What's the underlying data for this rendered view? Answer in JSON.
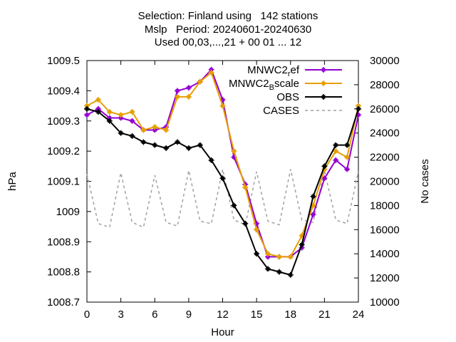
{
  "chart_data": {
    "type": "line",
    "title": [
      "Selection: Finland using   142 stations",
      "Mslp   Period: 20240601-20240630",
      "Used 00,03,...,21 + 00 01 ... 12"
    ],
    "xlabel": "Hour",
    "ylabel": "hPa",
    "y2label": "No cases",
    "xlim": [
      0,
      24
    ],
    "ylim": [
      1008.7,
      1009.5
    ],
    "y2lim": [
      10000,
      30000
    ],
    "xticks": [
      0,
      3,
      6,
      9,
      12,
      15,
      18,
      21,
      24
    ],
    "xtick_labels": [
      "0",
      "3",
      "6",
      "9",
      "12",
      "15",
      "18",
      "21",
      "24"
    ],
    "yticks": [
      1008.7,
      1008.8,
      1008.9,
      1009,
      1009.1,
      1009.2,
      1009.3,
      1009.4,
      1009.5
    ],
    "ytick_labels": [
      "1008.7",
      "1008.8",
      "1008.9",
      "1009",
      "1009.1",
      "1009.2",
      "1009.3",
      "1009.4",
      "1009.5"
    ],
    "y2ticks": [
      10000,
      12000,
      14000,
      16000,
      18000,
      20000,
      22000,
      24000,
      26000,
      28000,
      30000
    ],
    "y2tick_labels": [
      "10000",
      "12000",
      "14000",
      "16000",
      "18000",
      "20000",
      "22000",
      "24000",
      "26000",
      "28000",
      "30000"
    ],
    "grid": false,
    "legend_position": "top-right",
    "x": [
      0,
      1,
      2,
      3,
      4,
      5,
      6,
      7,
      8,
      9,
      10,
      11,
      12,
      13,
      14,
      15,
      16,
      17,
      18,
      19,
      20,
      21,
      22,
      23,
      24
    ],
    "series": [
      {
        "name": "MNWC2_ref",
        "legend_main": "MNWC2",
        "legend_sub": "r",
        "legend_tail": "ef",
        "color": "#9400d3",
        "axis": "left",
        "style": "solid-marker",
        "values": [
          1009.32,
          1009.34,
          1009.31,
          1009.31,
          1009.3,
          1009.27,
          1009.27,
          1009.28,
          1009.4,
          1009.41,
          1009.43,
          1009.47,
          1009.37,
          1009.18,
          1009.09,
          1008.96,
          1008.85,
          1008.85,
          1008.85,
          1008.88,
          1008.99,
          1009.11,
          1009.17,
          1009.14,
          1009.32
        ]
      },
      {
        "name": "MNWC2_Bscale",
        "legend_main": "MNWC2",
        "legend_sub": "B",
        "legend_tail": "scale",
        "color": "#e69f00",
        "axis": "left",
        "style": "solid-marker",
        "values": [
          1009.35,
          1009.37,
          1009.33,
          1009.32,
          1009.33,
          1009.27,
          1009.28,
          1009.27,
          1009.38,
          1009.38,
          1009.43,
          1009.46,
          1009.35,
          1009.2,
          1009.08,
          1008.94,
          1008.86,
          1008.85,
          1008.85,
          1008.92,
          1009.02,
          1009.14,
          1009.2,
          1009.18,
          1009.35
        ]
      },
      {
        "name": "OBS",
        "legend_main": "OBS",
        "legend_sub": "",
        "legend_tail": "",
        "color": "#000000",
        "axis": "left",
        "style": "solid-marker",
        "values": [
          1009.34,
          1009.33,
          1009.3,
          1009.26,
          1009.25,
          1009.23,
          1009.22,
          1009.21,
          1009.23,
          1009.21,
          1009.22,
          1009.17,
          1009.11,
          1009.02,
          1008.96,
          1008.86,
          1008.81,
          1008.8,
          1008.79,
          1008.89,
          1009.05,
          1009.15,
          1009.22,
          1009.22,
          1009.34
        ]
      },
      {
        "name": "CASES",
        "legend_main": "CASES",
        "legend_sub": "",
        "legend_tail": "",
        "color": "#a0a0a0",
        "axis": "right",
        "style": "dashed",
        "values": [
          20600,
          16500,
          16200,
          20700,
          16600,
          16200,
          20500,
          16600,
          16300,
          20900,
          16700,
          16500,
          21000,
          16800,
          16400,
          20800,
          16700,
          16400,
          21000,
          16800,
          16600,
          20900,
          16800,
          16500,
          20800
        ]
      }
    ]
  }
}
